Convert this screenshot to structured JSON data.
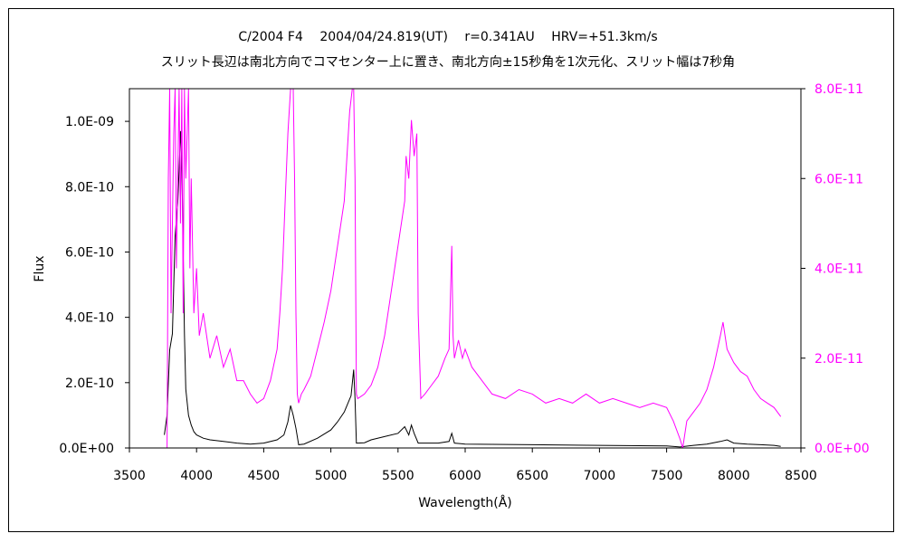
{
  "chart_data": {
    "type": "line",
    "title": "C/2004 F4　 2004/04/24.819(UT)　 r=0.341AU　 HRV=+51.3km/s",
    "subtitle": "スリット長辺は南北方向でコマセンター上に置き、南北方向±15秒角を1次元化、スリット幅は7秒角",
    "xlabel": "Wavelength(Å)",
    "ylabel": "Flux",
    "y2label": "",
    "xlim": [
      3500,
      8500
    ],
    "ylim": [
      0,
      1.1e-09
    ],
    "y2lim": [
      0,
      8e-11
    ],
    "x_ticks": [
      "3500",
      "4000",
      "4500",
      "5000",
      "5500",
      "6000",
      "6500",
      "7000",
      "7500",
      "8000",
      "8500"
    ],
    "y_ticks": [
      "0.0E+00",
      "2.0E-10",
      "4.0E-10",
      "6.0E-10",
      "8.0E-10",
      "1.0E-09"
    ],
    "y2_ticks": [
      "0.0E+00",
      "2.0E-11",
      "4.0E-11",
      "6.0E-11",
      "8.0E-11"
    ],
    "grid": false,
    "legend": "none",
    "colors": {
      "primary": "#000000",
      "secondary": "#ff00ff"
    },
    "series": [
      {
        "axis": "left",
        "color": "#000000",
        "x": [
          3760,
          3780,
          3800,
          3820,
          3840,
          3860,
          3870,
          3880,
          3890,
          3900,
          3910,
          3920,
          3940,
          3960,
          3980,
          4000,
          4050,
          4100,
          4200,
          4300,
          4400,
          4500,
          4600,
          4650,
          4680,
          4700,
          4720,
          4740,
          4760,
          4800,
          4900,
          5000,
          5050,
          5100,
          5120,
          5150,
          5170,
          5180,
          5190,
          5200,
          5250,
          5300,
          5400,
          5500,
          5550,
          5580,
          5600,
          5620,
          5650,
          5700,
          5800,
          5880,
          5900,
          5920,
          6000,
          6500,
          7000,
          7500,
          7600,
          7700,
          7800,
          7900,
          7950,
          8000,
          8100,
          8200,
          8300,
          8350
        ],
        "y": [
          4e-11,
          1e-10,
          3e-10,
          3.5e-10,
          6.5e-10,
          7.5e-10,
          8.5e-10,
          9.7e-10,
          8.8e-10,
          6e-10,
          3.5e-10,
          1.8e-10,
          1e-10,
          7e-11,
          5e-11,
          4e-11,
          3e-11,
          2.5e-11,
          2e-11,
          1.5e-11,
          1.2e-11,
          1.5e-11,
          2.5e-11,
          4e-11,
          8e-11,
          1.3e-10,
          1e-10,
          6e-11,
          1e-11,
          1.2e-11,
          3e-11,
          5.5e-11,
          8e-11,
          1.1e-10,
          1.3e-10,
          1.6e-10,
          2.4e-10,
          1.5e-10,
          1.5e-11,
          1.5e-11,
          1.6e-11,
          2.5e-11,
          3.5e-11,
          4.5e-11,
          6.5e-11,
          4e-11,
          7e-11,
          4.5e-11,
          1.5e-11,
          1.5e-11,
          1.5e-11,
          2e-11,
          4.5e-11,
          1.5e-11,
          1.2e-11,
          1e-11,
          8e-12,
          6e-12,
          3e-12,
          8e-12,
          1.2e-11,
          2e-11,
          2.5e-11,
          1.5e-11,
          1.2e-11,
          1e-11,
          8e-12,
          5e-12
        ]
      },
      {
        "axis": "right",
        "color": "#ff00ff",
        "x": [
          3780,
          3790,
          3800,
          3810,
          3820,
          3830,
          3840,
          3850,
          3860,
          3870,
          3880,
          3890,
          3900,
          3910,
          3920,
          3930,
          3940,
          3950,
          3960,
          3980,
          4000,
          4020,
          4050,
          4100,
          4150,
          4200,
          4250,
          4300,
          4350,
          4400,
          4450,
          4500,
          4550,
          4600,
          4620,
          4640,
          4660,
          4680,
          4700,
          4720,
          4730,
          4740,
          4750,
          4760,
          4780,
          4800,
          4850,
          4900,
          4950,
          5000,
          5050,
          5100,
          5120,
          5140,
          5160,
          5170,
          5180,
          5190,
          5200,
          5250,
          5300,
          5350,
          5400,
          5450,
          5500,
          5550,
          5560,
          5580,
          5600,
          5620,
          5640,
          5650,
          5670,
          5700,
          5750,
          5800,
          5850,
          5880,
          5900,
          5910,
          5920,
          5950,
          5980,
          6000,
          6050,
          6100,
          6200,
          6300,
          6400,
          6500,
          6600,
          6700,
          6800,
          6900,
          7000,
          7100,
          7200,
          7300,
          7400,
          7500,
          7550,
          7600,
          7620,
          7650,
          7700,
          7750,
          7800,
          7850,
          7900,
          7920,
          7950,
          8000,
          8050,
          8100,
          8150,
          8200,
          8250,
          8300,
          8350
        ],
        "y": [
          0,
          6e-11,
          8e-11,
          3e-11,
          5e-11,
          7e-11,
          8e-11,
          4e-11,
          6e-11,
          8e-11,
          5e-11,
          8e-11,
          3e-11,
          8e-11,
          6e-11,
          7e-11,
          8e-11,
          4e-11,
          6e-11,
          3e-11,
          4e-11,
          2.5e-11,
          3e-11,
          2e-11,
          2.5e-11,
          1.8e-11,
          2.2e-11,
          1.5e-11,
          1.5e-11,
          1.2e-11,
          1e-11,
          1.1e-11,
          1.5e-11,
          2.2e-11,
          3e-11,
          4e-11,
          5.5e-11,
          7e-11,
          8e-11,
          8e-11,
          6e-11,
          3e-11,
          1.2e-11,
          1e-11,
          1.2e-11,
          1.3e-11,
          1.6e-11,
          2.2e-11,
          2.8e-11,
          3.5e-11,
          4.5e-11,
          5.5e-11,
          6.5e-11,
          7.5e-11,
          8e-11,
          8e-11,
          6e-11,
          1.2e-11,
          1.1e-11,
          1.2e-11,
          1.4e-11,
          1.8e-11,
          2.5e-11,
          3.5e-11,
          4.5e-11,
          5.5e-11,
          6.5e-11,
          6e-11,
          7.3e-11,
          6.5e-11,
          7e-11,
          3e-11,
          1.1e-11,
          1.2e-11,
          1.4e-11,
          1.6e-11,
          2e-11,
          2.2e-11,
          4.5e-11,
          2.5e-11,
          2e-11,
          2.4e-11,
          2e-11,
          2.2e-11,
          1.8e-11,
          1.6e-11,
          1.2e-11,
          1.1e-11,
          1.3e-11,
          1.2e-11,
          1e-11,
          1.1e-11,
          1e-11,
          1.2e-11,
          1e-11,
          1.1e-11,
          1e-11,
          9e-12,
          1e-11,
          9e-12,
          6e-12,
          2e-12,
          0,
          6e-12,
          8e-12,
          1e-11,
          1.3e-11,
          1.8e-11,
          2.5e-11,
          2.8e-11,
          2.2e-11,
          1.9e-11,
          1.7e-11,
          1.6e-11,
          1.3e-11,
          1.1e-11,
          1e-11,
          9e-12,
          7e-12
        ]
      }
    ]
  }
}
